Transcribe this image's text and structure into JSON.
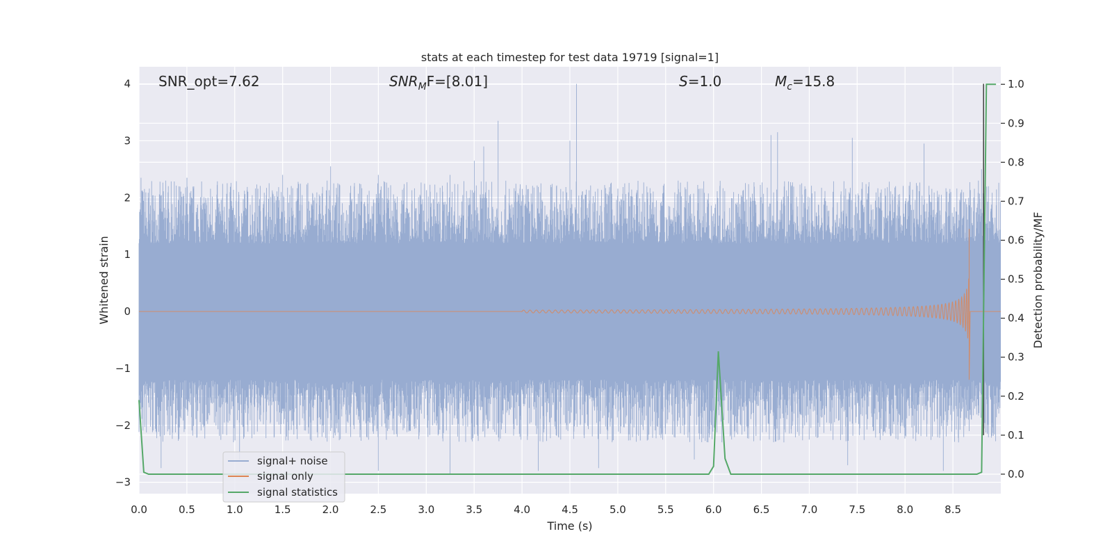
{
  "chart_data": {
    "type": "line",
    "title": "stats at each timestep for test data 19719 [signal=1]",
    "xlabel": "Time (s)",
    "ylabel": "Whitened strain",
    "ylabel_right": "Detection probability/MF",
    "xlim": [
      0.0,
      9.0
    ],
    "ylim": [
      -3.2,
      4.3
    ],
    "ylim_right": [
      -0.05,
      1.045
    ],
    "x_ticks": [
      "0.0",
      "0.5",
      "1.0",
      "1.5",
      "2.0",
      "2.5",
      "3.0",
      "3.5",
      "4.0",
      "4.5",
      "5.0",
      "5.5",
      "6.0",
      "6.5",
      "7.0",
      "7.5",
      "8.0",
      "8.5"
    ],
    "y_ticks": [
      "−3",
      "−2",
      "−1",
      "0",
      "1",
      "2",
      "3",
      "4"
    ],
    "y_ticks_right": [
      "0.0",
      "0.1",
      "0.2",
      "0.3",
      "0.4",
      "0.5",
      "0.6",
      "0.7",
      "0.8",
      "0.9",
      "1.0"
    ],
    "annotations": {
      "snr_opt": "SNR_opt=7.62",
      "snr_mf_base": "SNR",
      "snr_mf_sub": "M",
      "snr_mf_rest": "F=[8.01]",
      "s_label": "S",
      "s_value": "=1.0",
      "mc_base": "M",
      "mc_sub": "c",
      "mc_value": "=15.8"
    },
    "legend": {
      "placement": "lower-left",
      "entries": [
        "signal+ noise",
        "signal only",
        "signal statistics"
      ]
    },
    "series": [
      {
        "name": "signal+ noise",
        "color": "#98acd1",
        "axis": "left",
        "description_x_range": [
          0.0,
          9.0
        ],
        "peaks": [
          {
            "x": 0.02,
            "y": 2.35
          },
          {
            "x": 0.28,
            "y": 2.3
          },
          {
            "x": 0.5,
            "y": 2.35
          },
          {
            "x": 1.5,
            "y": 2.4
          },
          {
            "x": 2.0,
            "y": 2.55
          },
          {
            "x": 2.5,
            "y": 2.4
          },
          {
            "x": 3.25,
            "y": 2.4
          },
          {
            "x": 3.5,
            "y": 2.65
          },
          {
            "x": 3.6,
            "y": 2.9
          },
          {
            "x": 3.75,
            "y": 3.35
          },
          {
            "x": 4.5,
            "y": 3.0
          },
          {
            "x": 4.57,
            "y": 4.0
          },
          {
            "x": 6.6,
            "y": 3.1
          },
          {
            "x": 6.67,
            "y": 3.15
          },
          {
            "x": 7.45,
            "y": 3.05
          },
          {
            "x": 8.2,
            "y": 2.95
          },
          {
            "x": 8.8,
            "y": 2.5
          }
        ],
        "troughs": [
          {
            "x": 0.23,
            "y": -2.75
          },
          {
            "x": 1.05,
            "y": -2.6
          },
          {
            "x": 2.5,
            "y": -2.8
          },
          {
            "x": 3.25,
            "y": -2.85
          },
          {
            "x": 4.17,
            "y": -2.8
          },
          {
            "x": 4.8,
            "y": -2.75
          },
          {
            "x": 5.8,
            "y": -2.6
          },
          {
            "x": 7.4,
            "y": -2.7
          },
          {
            "x": 8.4,
            "y": -2.8
          }
        ]
      },
      {
        "name": "signal only",
        "color": "#dd8452",
        "axis": "left",
        "chirp_start": 4.0,
        "merger_time": 8.67,
        "peak_amplitude": 1.45,
        "min_amplitude": -1.2
      },
      {
        "name": "signal statistics",
        "color": "#55a868",
        "axis": "right",
        "x": [
          0.0,
          0.05,
          0.1,
          0.15,
          5.95,
          6.0,
          6.05,
          6.12,
          6.18,
          8.75,
          8.8,
          8.85,
          8.9,
          8.95
        ],
        "y": [
          0.19,
          0.005,
          0.0,
          0.0,
          0.0,
          0.02,
          0.315,
          0.04,
          0.0,
          0.0,
          0.005,
          1.0,
          1.0,
          1.0
        ]
      }
    ],
    "vertical_line": {
      "x": 8.82,
      "color": "#4c4c4c"
    },
    "grid": true
  }
}
